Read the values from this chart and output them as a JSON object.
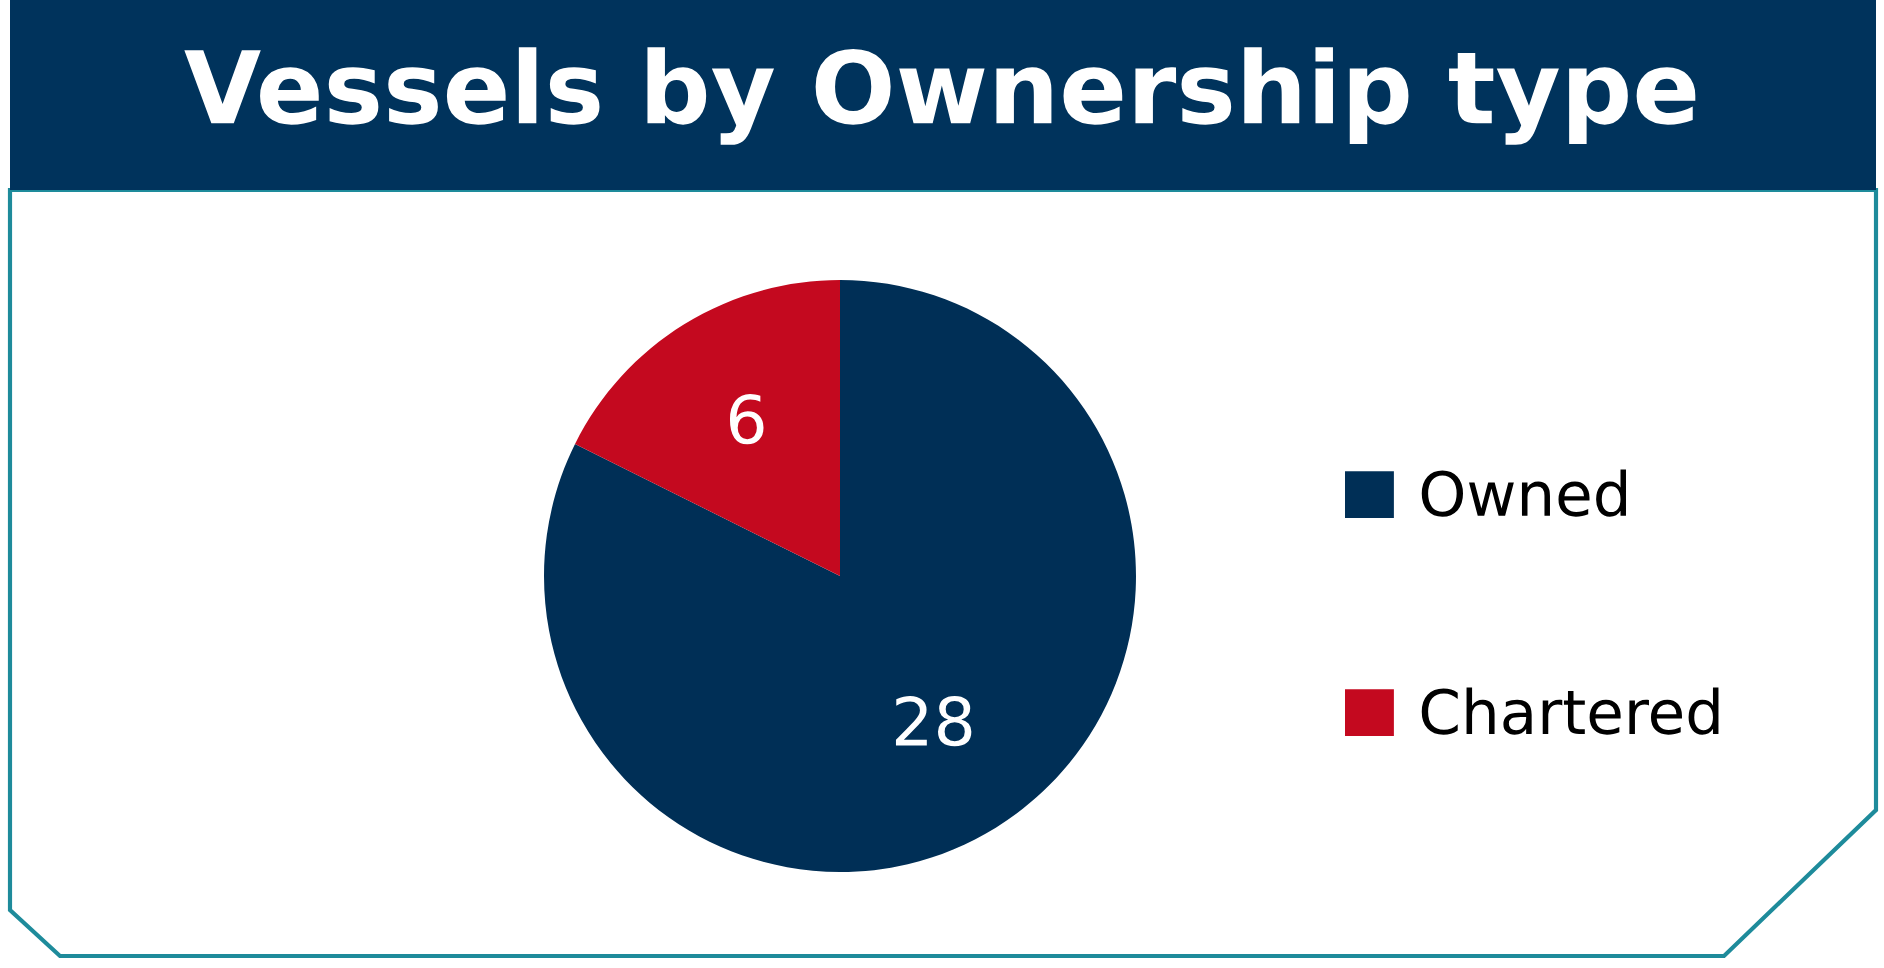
{
  "chart_data": {
    "type": "pie",
    "title": "Vessels by Ownership type",
    "categories": [
      "Owned",
      "Chartered"
    ],
    "values": [
      28,
      6
    ],
    "colors": [
      "#002f56",
      "#c4091f"
    ],
    "data_labels": true,
    "legend": "right"
  }
}
